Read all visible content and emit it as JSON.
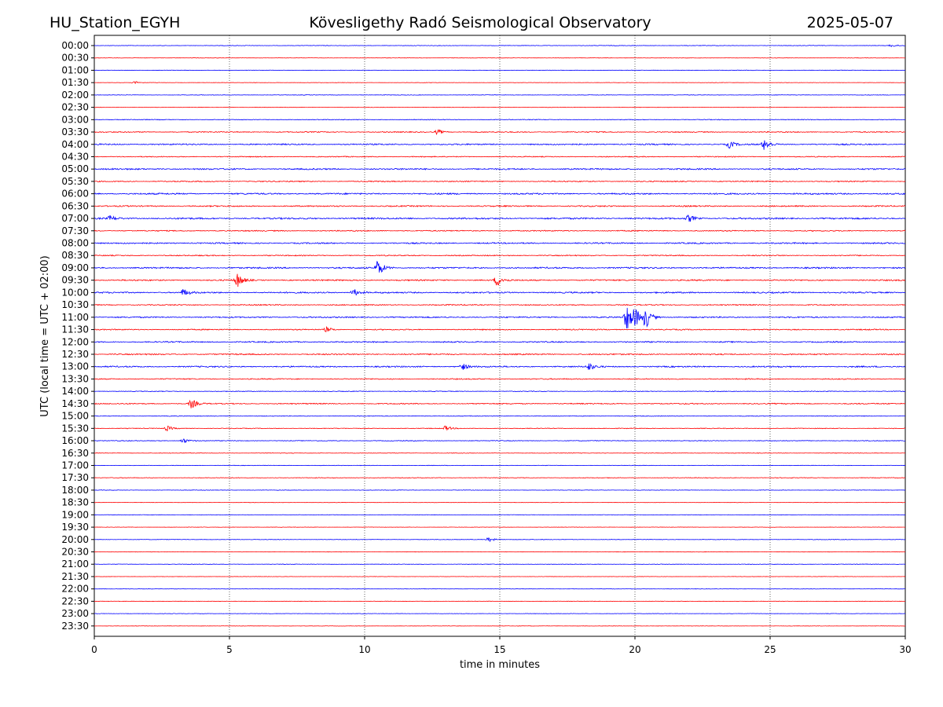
{
  "header": {
    "station": "HU_Station_EGYH",
    "observatory": "Kövesligethy Radó Seismological Observatory",
    "date": "2025-05-07"
  },
  "chart_data": {
    "type": "line",
    "title": "Kövesligethy Radó Seismological Observatory",
    "xlabel": "time in minutes",
    "ylabel": "UTC (local time = UTC + 02:00)",
    "xlim": [
      0,
      30
    ],
    "x_ticks": [
      "0",
      "5",
      "10",
      "15",
      "20",
      "25",
      "30"
    ],
    "grid": "vertical dotted at 5-minute intervals",
    "colors": {
      "even_rows": "#0000ff",
      "odd_rows": "#ff0000",
      "grid": "#000000"
    },
    "rows": [
      "00:00",
      "00:30",
      "01:00",
      "01:30",
      "02:00",
      "02:30",
      "03:00",
      "03:30",
      "04:00",
      "04:30",
      "05:00",
      "05:30",
      "06:00",
      "06:30",
      "07:00",
      "07:30",
      "08:00",
      "08:30",
      "09:00",
      "09:30",
      "10:00",
      "10:30",
      "11:00",
      "11:30",
      "12:00",
      "12:30",
      "13:00",
      "13:30",
      "14:00",
      "14:30",
      "15:00",
      "15:30",
      "16:00",
      "16:30",
      "17:00",
      "17:30",
      "18:00",
      "18:30",
      "19:00",
      "19:30",
      "20:00",
      "20:30",
      "21:00",
      "21:30",
      "22:00",
      "22:30",
      "23:00",
      "23:30"
    ],
    "noise_level": [
      0.15,
      0.1,
      0.13,
      0.1,
      0.14,
      0.12,
      0.2,
      0.28,
      0.38,
      0.26,
      0.4,
      0.3,
      0.42,
      0.36,
      0.45,
      0.3,
      0.38,
      0.3,
      0.42,
      0.38,
      0.4,
      0.3,
      0.36,
      0.3,
      0.35,
      0.36,
      0.38,
      0.3,
      0.2,
      0.3,
      0.2,
      0.2,
      0.2,
      0.15,
      0.14,
      0.18,
      0.14,
      0.1,
      0.12,
      0.1,
      0.15,
      0.12,
      0.14,
      0.1,
      0.1,
      0.12,
      0.12,
      0.1
    ],
    "events": [
      {
        "row": "00:00",
        "minute": 29.5,
        "amplitude": 1
      },
      {
        "row": "01:30",
        "minute": 1.5,
        "amplitude": 1
      },
      {
        "row": "03:30",
        "minute": 12.7,
        "amplitude": 2
      },
      {
        "row": "04:00",
        "minute": 23.5,
        "amplitude": 3
      },
      {
        "row": "04:00",
        "minute": 24.8,
        "amplitude": 5
      },
      {
        "row": "07:00",
        "minute": 0.6,
        "amplitude": 2
      },
      {
        "row": "07:00",
        "minute": 22.0,
        "amplitude": 3
      },
      {
        "row": "09:00",
        "minute": 10.5,
        "amplitude": 7
      },
      {
        "row": "09:30",
        "minute": 5.3,
        "amplitude": 6
      },
      {
        "row": "09:30",
        "minute": 14.9,
        "amplitude": 5
      },
      {
        "row": "10:00",
        "minute": 3.3,
        "amplitude": 3
      },
      {
        "row": "10:00",
        "minute": 9.6,
        "amplitude": 3
      },
      {
        "row": "11:00",
        "minute": 19.7,
        "amplitude": 11
      },
      {
        "row": "11:00",
        "minute": 20.0,
        "amplitude": 7
      },
      {
        "row": "11:00",
        "minute": 20.4,
        "amplitude": 9
      },
      {
        "row": "11:30",
        "minute": 8.6,
        "amplitude": 2
      },
      {
        "row": "13:00",
        "minute": 13.6,
        "amplitude": 3
      },
      {
        "row": "13:00",
        "minute": 18.3,
        "amplitude": 3
      },
      {
        "row": "14:30",
        "minute": 3.6,
        "amplitude": 4
      },
      {
        "row": "15:30",
        "minute": 2.7,
        "amplitude": 2
      },
      {
        "row": "15:30",
        "minute": 13.0,
        "amplitude": 2
      },
      {
        "row": "16:00",
        "minute": 3.3,
        "amplitude": 2
      },
      {
        "row": "20:00",
        "minute": 14.6,
        "amplitude": 2
      }
    ]
  }
}
